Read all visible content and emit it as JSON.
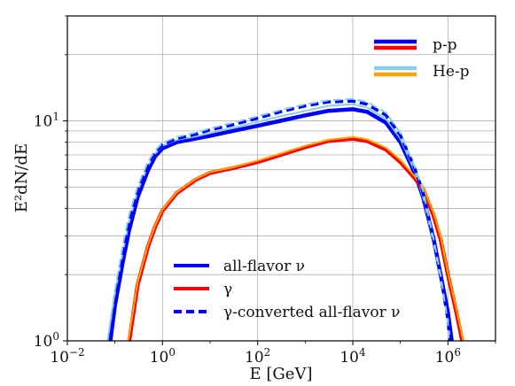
{
  "chart_data": {
    "type": "line",
    "xlabel": "E [GeV]",
    "ylabel": "E²dN/dE",
    "x_scale": "log",
    "y_scale": "log",
    "xlim": [
      0.01,
      10000000
    ],
    "ylim": [
      1,
      30
    ],
    "grid": true,
    "x_ticks": [
      {
        "value": 0.01,
        "base": "10",
        "exp": "−2"
      },
      {
        "value": 1,
        "base": "10",
        "exp": "0"
      },
      {
        "value": 100,
        "base": "10",
        "exp": "2"
      },
      {
        "value": 10000,
        "base": "10",
        "exp": "4"
      },
      {
        "value": 1000000,
        "base": "10",
        "exp": "6"
      }
    ],
    "y_ticks": [
      {
        "value": 1,
        "base": "10",
        "exp": "0"
      },
      {
        "value": 10,
        "base": "10",
        "exp": "1"
      }
    ],
    "legend_source": {
      "placement": "top-right",
      "entries": [
        {
          "label": "p-p",
          "colors": [
            "#0000ff",
            "#ff0000"
          ]
        },
        {
          "label": "He-p",
          "colors": [
            "#87ceeb",
            "#ffa500"
          ]
        }
      ]
    },
    "legend_type": {
      "placement": "bottom-center",
      "entries": [
        {
          "label": "all-flavor ν",
          "color": "#0000ff",
          "style": "solid"
        },
        {
          "label": "γ",
          "color": "#ff0000",
          "style": "solid"
        },
        {
          "label": "γ-converted all-flavor ν",
          "color": "#0000ff",
          "style": "dashed"
        }
      ]
    },
    "series": [
      {
        "name": "all-flavor ν (p-p)",
        "color": "#0000ff",
        "style": "solid",
        "width": 4.5,
        "x": [
          0.08,
          0.1,
          0.15,
          0.2,
          0.3,
          0.5,
          0.7,
          1,
          2,
          5,
          10,
          30,
          100,
          300,
          1000,
          3000,
          10000,
          20000,
          50000,
          100000,
          200000,
          300000,
          500000,
          700000,
          1000000,
          1200000
        ],
        "y": [
          1.0,
          1.45,
          2.35,
          3.2,
          4.5,
          6.0,
          6.9,
          7.5,
          8.0,
          8.3,
          8.55,
          9.0,
          9.5,
          10.0,
          10.6,
          11.1,
          11.3,
          11.0,
          9.8,
          8.0,
          5.8,
          4.5,
          2.9,
          2.0,
          1.35,
          1.0
        ]
      },
      {
        "name": "all-flavor ν (He-p)",
        "color": "#87ceeb",
        "style": "solid",
        "width": 2,
        "x": [
          0.07,
          0.1,
          0.15,
          0.2,
          0.3,
          0.5,
          0.7,
          1,
          2,
          5,
          10,
          30,
          100,
          300,
          1000,
          3000,
          10000,
          20000,
          50000,
          100000,
          200000,
          300000,
          500000,
          700000,
          1000000,
          1100000
        ],
        "y": [
          1.0,
          1.65,
          2.6,
          3.5,
          4.8,
          6.3,
          7.1,
          7.7,
          8.2,
          8.5,
          8.8,
          9.3,
          9.9,
          10.5,
          11.1,
          11.7,
          11.9,
          11.5,
          10.2,
          8.3,
          5.9,
          4.5,
          2.8,
          1.9,
          1.25,
          1.0
        ]
      },
      {
        "name": "γ (p-p)",
        "color": "#ff0000",
        "style": "solid",
        "width": 4.5,
        "x": [
          0.2,
          0.3,
          0.5,
          0.7,
          1,
          2,
          5,
          10,
          30,
          100,
          300,
          1000,
          3000,
          10000,
          20000,
          50000,
          100000,
          200000,
          300000,
          500000,
          700000,
          1000000,
          1500000,
          2000000
        ],
        "y": [
          1.0,
          1.8,
          2.7,
          3.3,
          3.9,
          4.7,
          5.4,
          5.8,
          6.1,
          6.5,
          7.0,
          7.6,
          8.1,
          8.3,
          8.1,
          7.4,
          6.5,
          5.5,
          4.9,
          3.7,
          2.9,
          2.0,
          1.35,
          1.0
        ]
      },
      {
        "name": "γ (He-p)",
        "color": "#ffa500",
        "style": "solid",
        "width": 2,
        "x": [
          0.19,
          0.3,
          0.5,
          0.7,
          1,
          2,
          5,
          10,
          30,
          100,
          300,
          1000,
          3000,
          10000,
          20000,
          50000,
          100000,
          200000,
          300000,
          500000,
          700000,
          1000000,
          1500000,
          2100000
        ],
        "y": [
          1.0,
          1.85,
          2.75,
          3.35,
          3.95,
          4.75,
          5.45,
          5.85,
          6.15,
          6.6,
          7.1,
          7.7,
          8.2,
          8.45,
          8.25,
          7.55,
          6.65,
          5.6,
          5.0,
          3.8,
          3.0,
          2.05,
          1.4,
          1.0
        ]
      },
      {
        "name": "γ-converted all-flavor ν (p-p)",
        "color": "#0000ff",
        "style": "dashed",
        "width": 3.5,
        "x": [
          0.075,
          0.1,
          0.15,
          0.2,
          0.3,
          0.5,
          0.7,
          1,
          2,
          5,
          10,
          30,
          100,
          300,
          1000,
          3000,
          10000,
          20000,
          50000,
          100000,
          200000,
          300000,
          500000,
          700000,
          1000000,
          1100000
        ],
        "y": [
          1.0,
          1.6,
          2.65,
          3.6,
          4.9,
          6.4,
          7.2,
          7.8,
          8.3,
          8.7,
          9.1,
          9.6,
          10.3,
          11.0,
          11.7,
          12.2,
          12.3,
          11.9,
          10.6,
          8.6,
          6.1,
          4.7,
          2.9,
          2.0,
          1.25,
          1.0
        ]
      },
      {
        "name": "γ-converted all-flavor ν (He-p)",
        "color": "#87ceeb",
        "style": "dashed",
        "width": 2,
        "x": [
          0.07,
          0.1,
          0.15,
          0.2,
          0.3,
          0.5,
          0.7,
          1,
          2,
          5,
          10,
          30,
          100,
          300,
          1000,
          3000,
          10000,
          20000,
          50000,
          100000,
          200000,
          300000,
          500000,
          700000,
          1000000,
          1050000
        ],
        "y": [
          1.0,
          1.7,
          2.8,
          3.75,
          5.05,
          6.55,
          7.35,
          7.95,
          8.45,
          8.85,
          9.25,
          9.8,
          10.5,
          11.2,
          11.9,
          12.4,
          12.6,
          12.2,
          10.9,
          8.8,
          6.2,
          4.8,
          2.9,
          2.0,
          1.2,
          1.0
        ]
      }
    ]
  }
}
